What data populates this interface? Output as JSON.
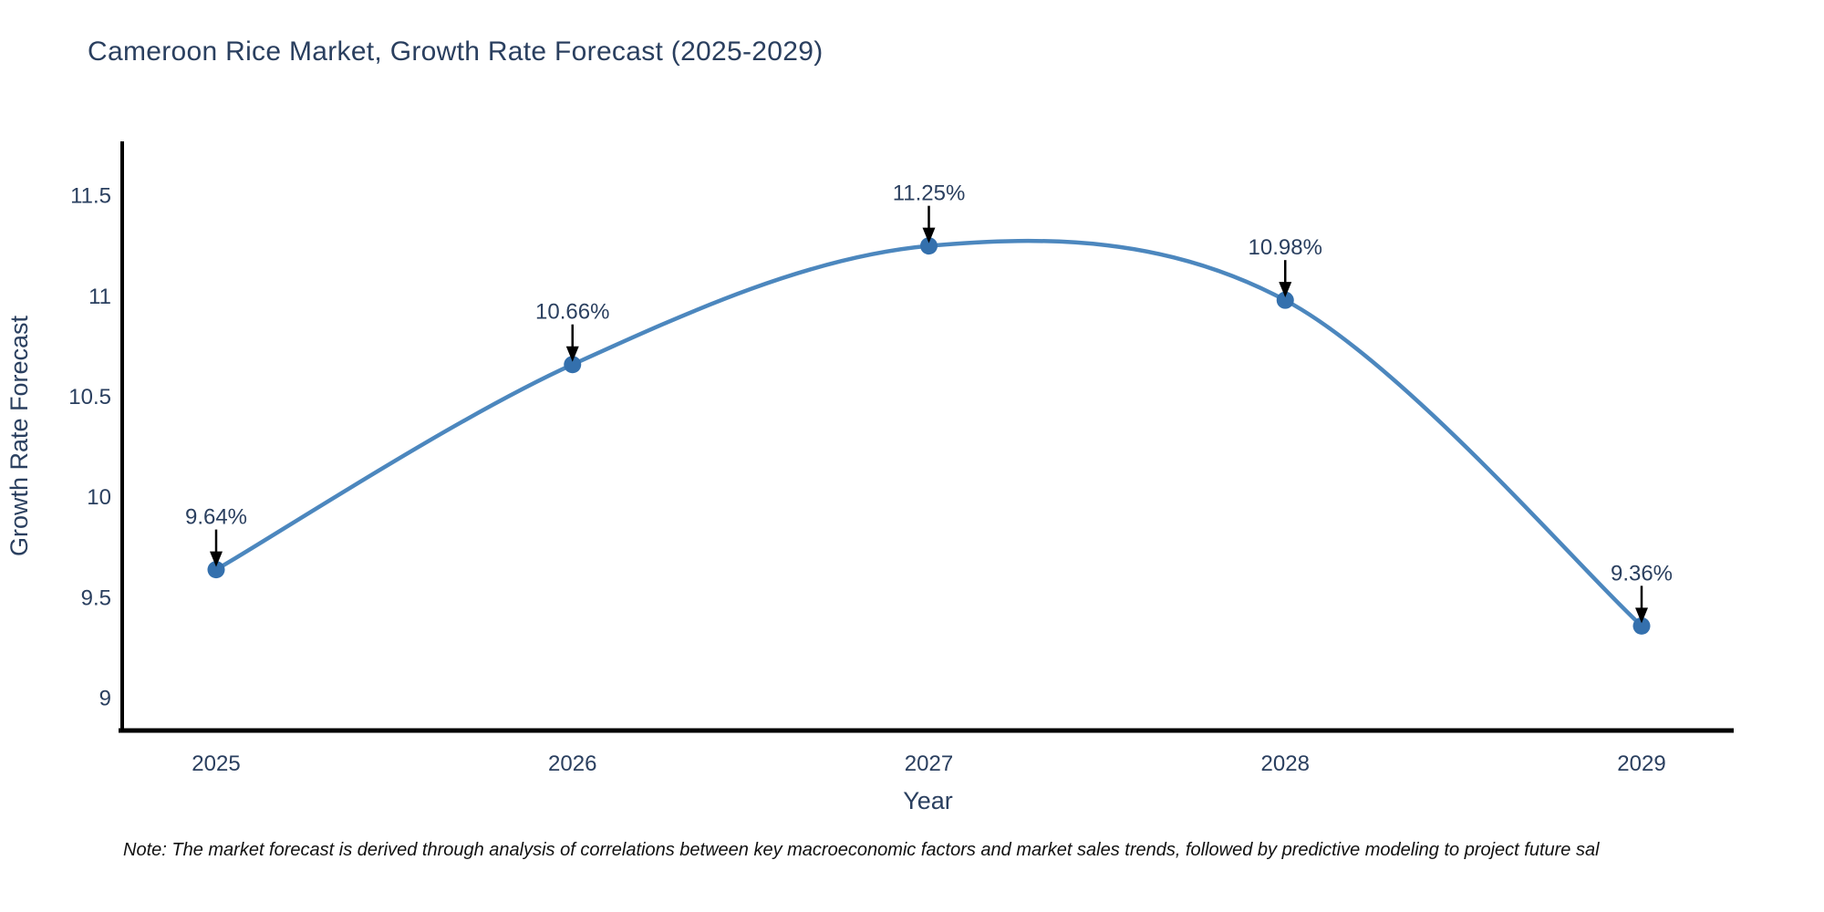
{
  "chart_data": {
    "type": "line",
    "line_shape": "spline",
    "categories": [
      "2025",
      "2026",
      "2027",
      "2028",
      "2029"
    ],
    "values": [
      9.64,
      10.66,
      11.25,
      10.98,
      9.36
    ],
    "point_labels": [
      "9.64%",
      "10.66%",
      "11.25%",
      "10.98%",
      "9.36%"
    ],
    "title": "Cameroon Rice Market, Growth Rate Forecast (2025-2029)",
    "xlabel": "Year",
    "ylabel": "Growth Rate Forecast",
    "yticks": [
      9,
      9.5,
      10,
      10.5,
      11,
      11.5
    ],
    "ylim": [
      8.84,
      11.77
    ],
    "grid": false,
    "legend": "none",
    "annotations": "black down-arrows from each percentage label to its data point",
    "colors": {
      "line": "#4c87be",
      "marker": "#3470ad",
      "axis": "#000000",
      "tick_text": "#2a3f5f",
      "title_text": "#2a3f5f",
      "annotation_text": "#2a3f5f",
      "annotation_arrow": "#000000",
      "note_text": "#111111",
      "background": "#ffffff"
    }
  },
  "note": {
    "text": "Note: The market forecast is derived through analysis of correlations between key macroeconomic factors and market sales trends, followed by predictive modeling to project future sal"
  }
}
